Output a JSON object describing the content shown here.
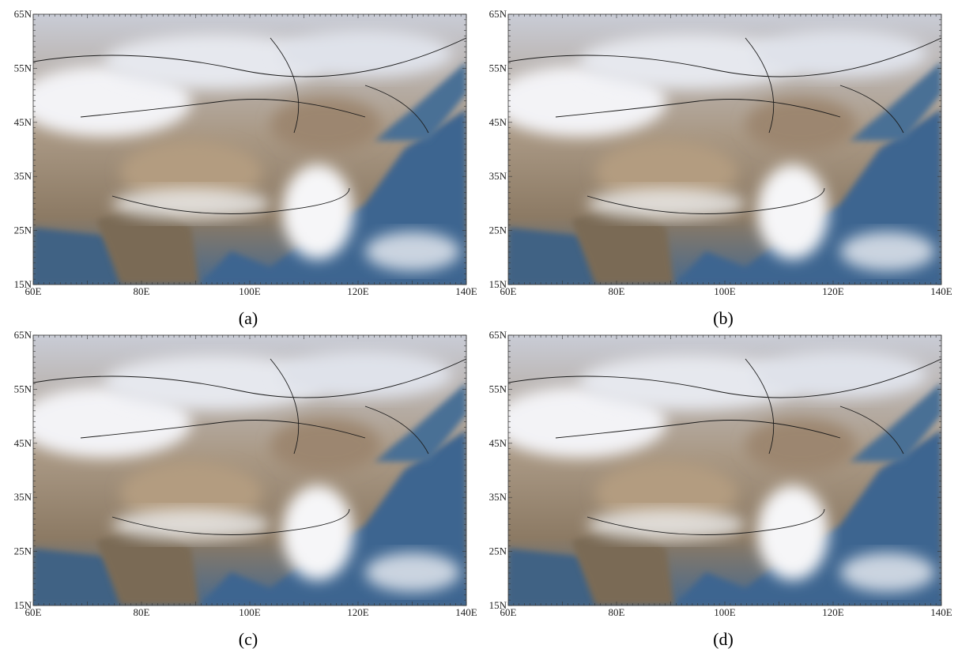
{
  "panels": [
    {
      "caption": "(a)",
      "x_tick_labels": [
        "60E",
        "80E",
        "100E",
        "120E",
        "140E"
      ],
      "y_tick_labels": [
        "15N",
        "25N",
        "35N",
        "45N",
        "55N",
        "65N"
      ]
    },
    {
      "caption": "(b)",
      "x_tick_labels": [
        "60E",
        "80E",
        "100E",
        "120E",
        "140E"
      ],
      "y_tick_labels": [
        "15N",
        "25N",
        "35N",
        "45N",
        "55N",
        "65N"
      ]
    },
    {
      "caption": "(c)",
      "x_tick_labels": [
        "60E",
        "80E",
        "100E",
        "120E",
        "140E"
      ],
      "y_tick_labels": [
        "15N",
        "25N",
        "35N",
        "45N",
        "55N",
        "65N"
      ]
    },
    {
      "caption": "(d)",
      "x_tick_labels": [
        "60E",
        "80E",
        "100E",
        "120E",
        "140E"
      ],
      "y_tick_labels": [
        "15N",
        "25N",
        "35N",
        "45N",
        "55N",
        "65N"
      ]
    }
  ]
}
